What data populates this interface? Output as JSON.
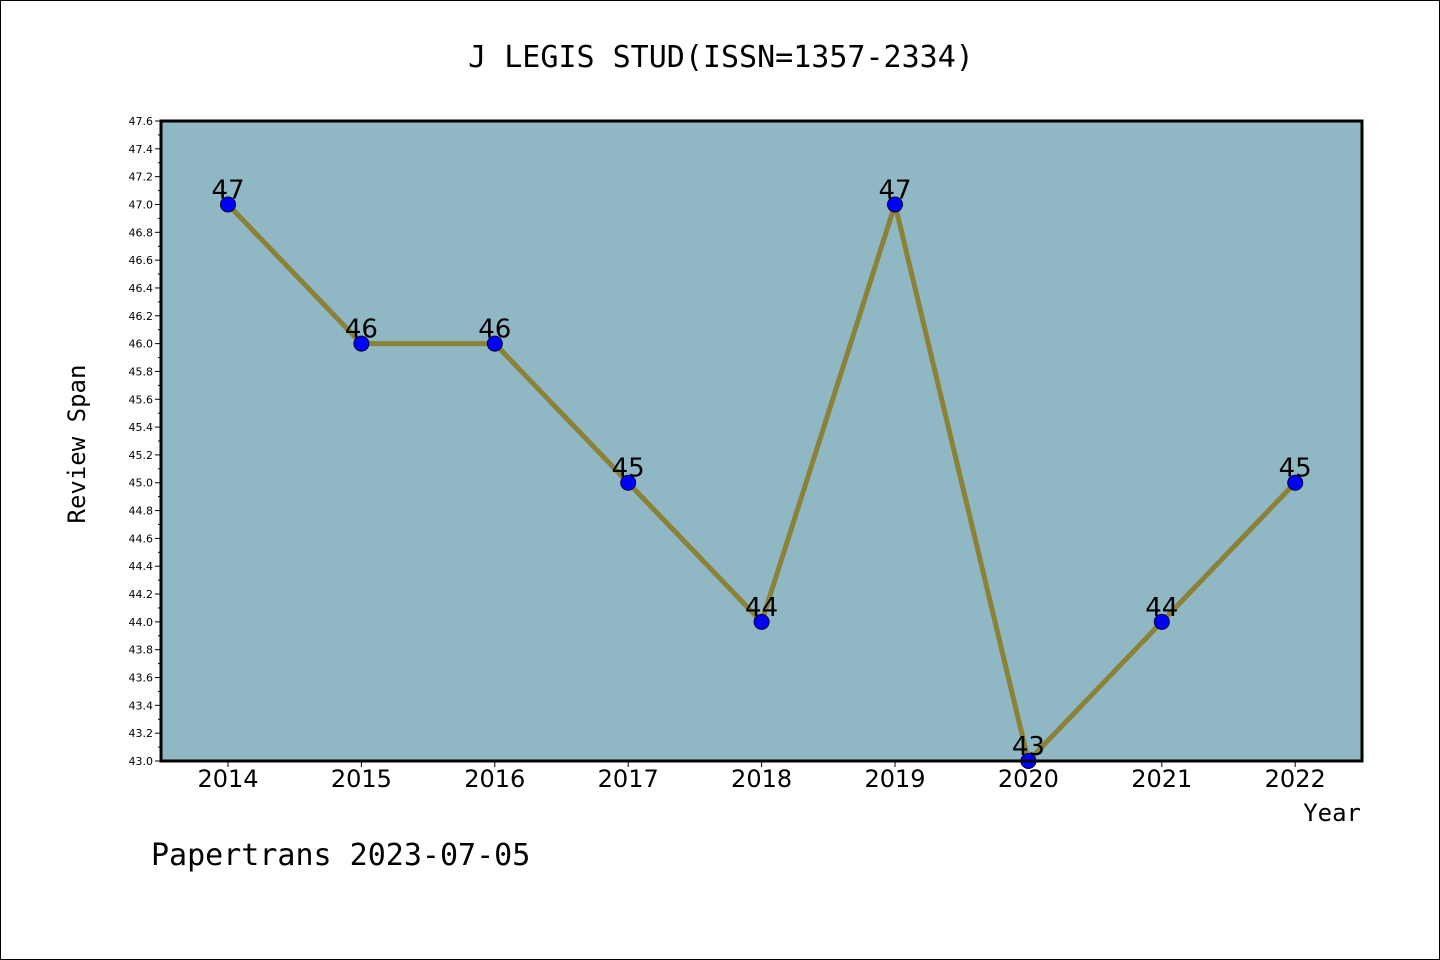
{
  "colors": {
    "plot_background": "#8fb7c4",
    "line": "#8b8237",
    "marker": "#0000ff",
    "marker_edge": "#000033",
    "frame": "#000000"
  },
  "footer": {
    "text": "Papertrans 2023-07-05"
  },
  "chart_data": {
    "type": "line",
    "title": "J LEGIS STUD(ISSN=1357-2334)",
    "xlabel": "Year",
    "ylabel": "Review Span",
    "categories": [
      "2014",
      "2015",
      "2016",
      "2017",
      "2018",
      "2019",
      "2020",
      "2021",
      "2022"
    ],
    "series": [
      {
        "values": [
          47,
          46,
          46,
          45,
          44,
          47,
          43,
          44,
          45
        ],
        "labels": [
          "47",
          "46",
          "46",
          "45",
          "44",
          "47",
          "43",
          "44",
          "45"
        ]
      }
    ],
    "ylim": [
      43.0,
      47.6
    ],
    "y_ticks": [
      "43.0",
      "43.2",
      "43.4",
      "43.6",
      "43.8",
      "44.0",
      "44.2",
      "44.4",
      "44.6",
      "44.8",
      "45.0",
      "45.2",
      "45.4",
      "45.6",
      "45.8",
      "46.0",
      "46.2",
      "46.4",
      "46.6",
      "46.8",
      "47.0",
      "47.2",
      "47.4",
      "47.6"
    ],
    "grid": false,
    "legend": "none"
  }
}
